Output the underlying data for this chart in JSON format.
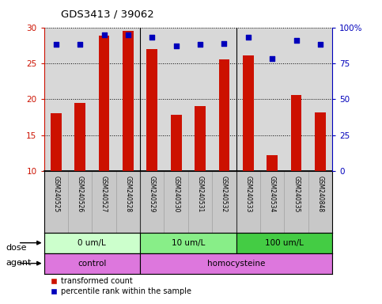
{
  "title": "GDS3413 / 39062",
  "samples": [
    "GSM240525",
    "GSM240526",
    "GSM240527",
    "GSM240528",
    "GSM240529",
    "GSM240530",
    "GSM240531",
    "GSM240532",
    "GSM240533",
    "GSM240534",
    "GSM240535",
    "GSM240848"
  ],
  "bar_values": [
    18.1,
    19.5,
    28.8,
    29.5,
    27.0,
    17.8,
    19.0,
    25.5,
    26.1,
    12.2,
    20.6,
    18.2
  ],
  "percentile_values": [
    88.0,
    88.0,
    95.0,
    95.0,
    93.0,
    87.0,
    88.0,
    89.0,
    93.0,
    78.0,
    91.0,
    88.0
  ],
  "bar_color": "#cc1100",
  "percentile_color": "#0000bb",
  "ylim_left": [
    10,
    30
  ],
  "ylim_right": [
    0,
    100
  ],
  "yticks_left": [
    10,
    15,
    20,
    25,
    30
  ],
  "yticks_right": [
    0,
    25,
    50,
    75,
    100
  ],
  "ytick_labels_right": [
    "0",
    "25",
    "50",
    "75",
    "100%"
  ],
  "dose_groups": [
    {
      "label": "0 um/L",
      "start": 0,
      "end": 4,
      "color": "#ccffcc"
    },
    {
      "label": "10 um/L",
      "start": 4,
      "end": 8,
      "color": "#88ee88"
    },
    {
      "label": "100 um/L",
      "start": 8,
      "end": 12,
      "color": "#44cc44"
    }
  ],
  "agent_control": {
    "label": "control",
    "start": 0,
    "end": 4,
    "color": "#dd66dd"
  },
  "agent_homo": {
    "label": "homocysteine",
    "start": 4,
    "end": 12,
    "color": "#dd66dd"
  },
  "dose_label": "dose",
  "agent_label": "agent",
  "legend_bar_label": "transformed count",
  "legend_pct_label": "percentile rank within the sample",
  "plot_bg_color": "#d8d8d8",
  "label_bg_color": "#c8c8c8"
}
